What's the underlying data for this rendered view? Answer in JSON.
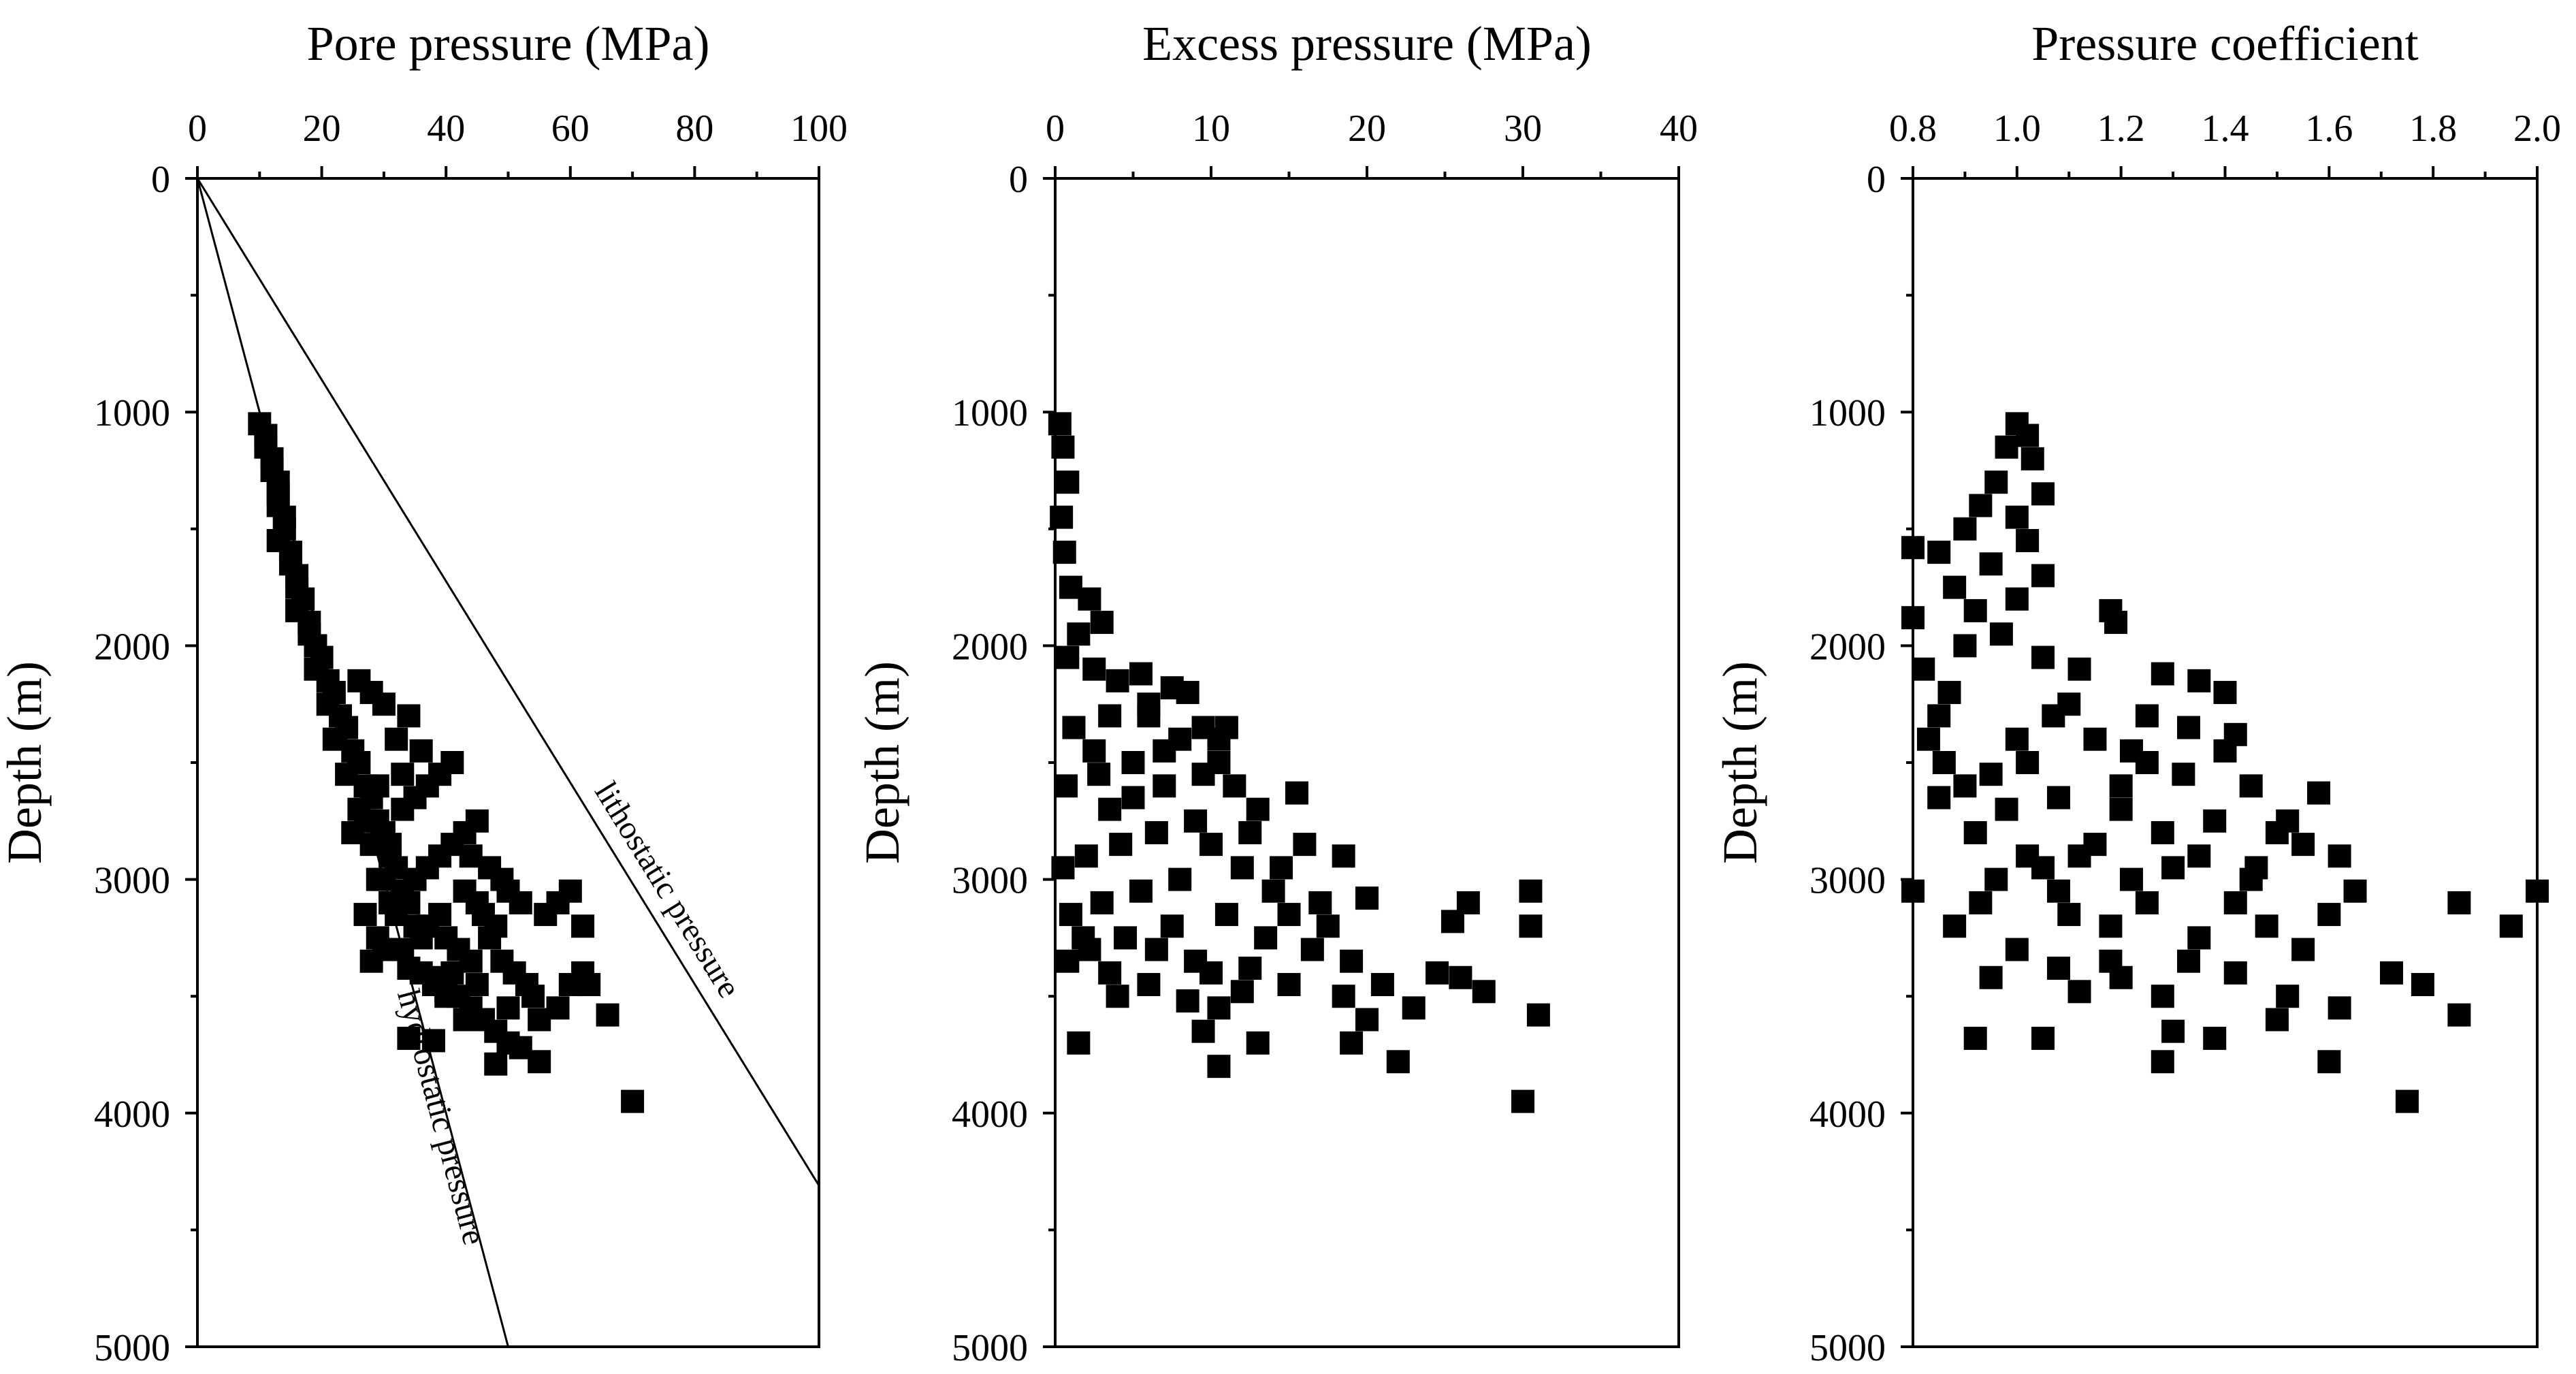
{
  "colors": {
    "marker": "#000000",
    "axes": "#000000",
    "background": "#ffffff"
  },
  "chart_data": [
    {
      "type": "scatter",
      "title": "",
      "xlabel": "Pore pressure (MPa)",
      "ylabel": "Depth (m)",
      "xlim": [
        0,
        100
      ],
      "ylim": [
        0,
        5000
      ],
      "y_inverted": true,
      "x_ticks": [
        0,
        20,
        40,
        60,
        80,
        100
      ],
      "x_tick_labels": [
        "0",
        "20",
        "40",
        "60",
        "80",
        "100"
      ],
      "y_ticks": [
        0,
        1000,
        2000,
        3000,
        4000,
        5000
      ],
      "y_tick_labels": [
        "0",
        "1000",
        "2000",
        "3000",
        "4000",
        "5000"
      ],
      "reference_lines": [
        {
          "name": "lithostatic pressure",
          "points": [
            [
              0,
              0
            ],
            [
              100,
              4310
            ]
          ]
        },
        {
          "name": "hydrostatic pressure",
          "points": [
            [
              0,
              0
            ],
            [
              50,
              5000
            ]
          ]
        }
      ],
      "series": [
        {
          "name": "pore pressure",
          "points": []
        }
      ]
    },
    {
      "type": "scatter",
      "title": "",
      "xlabel": "Excess pressure (MPa)",
      "ylabel": "Depth (m)",
      "xlim": [
        0,
        40
      ],
      "ylim": [
        0,
        5000
      ],
      "y_inverted": true,
      "x_ticks": [
        0,
        10,
        20,
        30,
        40
      ],
      "x_tick_labels": [
        "0",
        "10",
        "20",
        "30",
        "40"
      ],
      "y_ticks": [
        0,
        1000,
        2000,
        3000,
        4000,
        5000
      ],
      "y_tick_labels": [
        "0",
        "1000",
        "2000",
        "3000",
        "4000",
        "5000"
      ],
      "series": [
        {
          "name": "excess pressure",
          "points": []
        }
      ]
    },
    {
      "type": "scatter",
      "title": "",
      "xlabel": "Pressure coefficient",
      "ylabel": "Depth (m)",
      "xlim": [
        0.8,
        2.0
      ],
      "ylim": [
        0,
        5000
      ],
      "y_inverted": true,
      "x_ticks": [
        0.8,
        1.0,
        1.2,
        1.4,
        1.6,
        1.8,
        2.0
      ],
      "x_tick_labels": [
        "0.8",
        "1.0",
        "1.2",
        "1.4",
        "1.6",
        "1.8",
        "2.0"
      ],
      "y_ticks": [
        0,
        1000,
        2000,
        3000,
        4000,
        5000
      ],
      "y_tick_labels": [
        "0",
        "1000",
        "2000",
        "3000",
        "4000",
        "5000"
      ],
      "series": [
        {
          "name": "pressure coefficient",
          "points": []
        }
      ]
    }
  ]
}
